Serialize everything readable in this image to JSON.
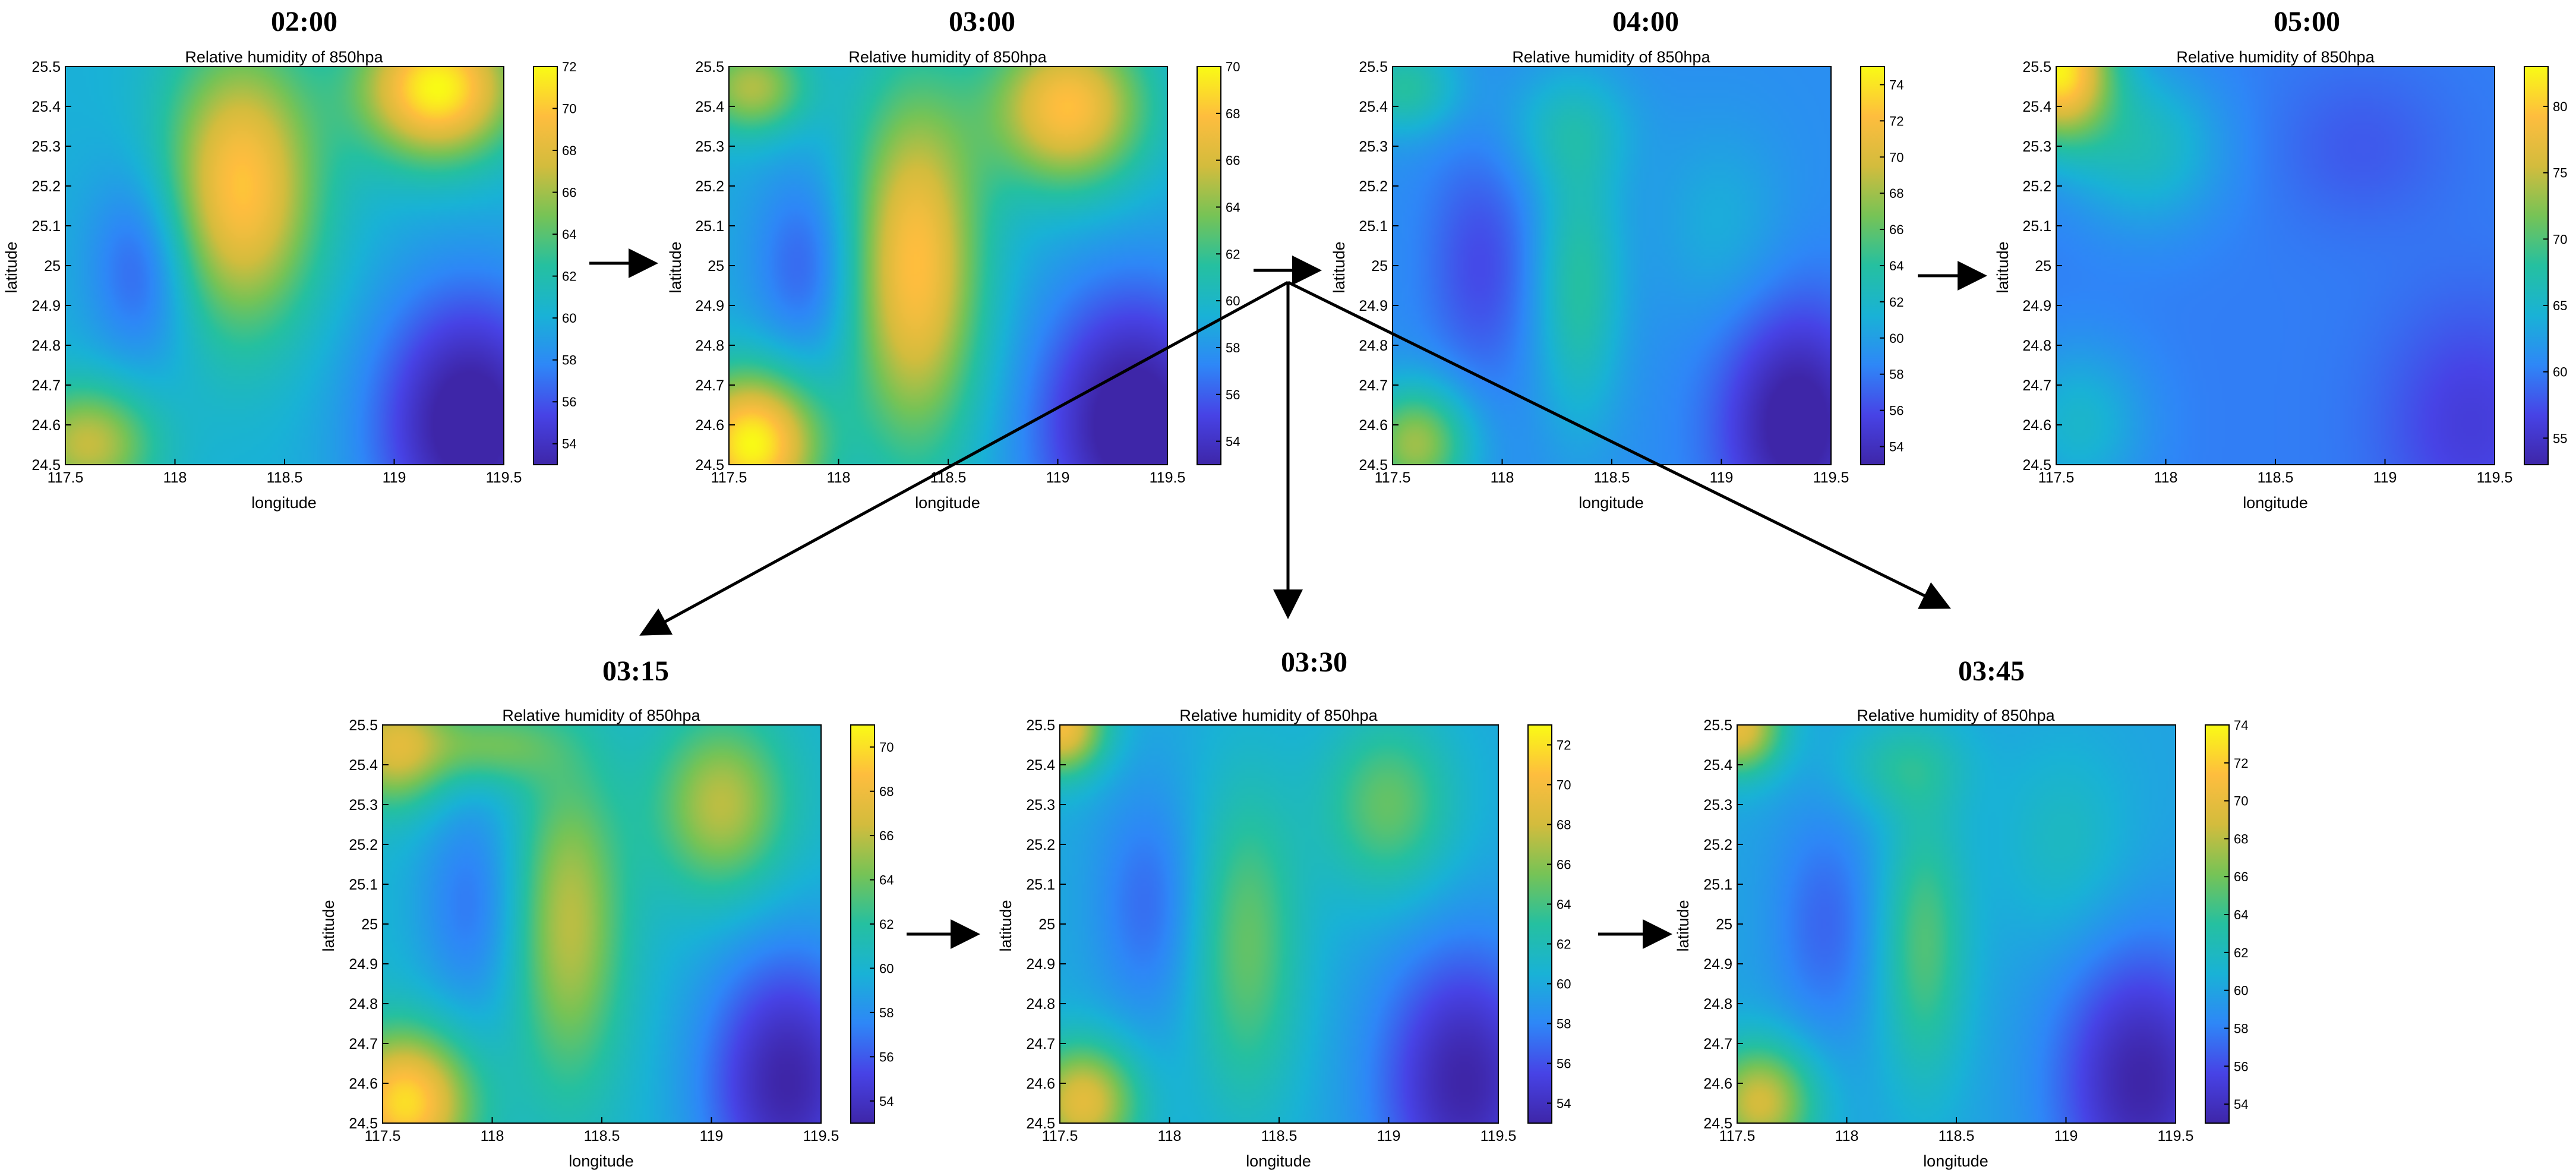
{
  "colormap": [
    "#3e26a8",
    "#4743e6",
    "#2e87f7",
    "#19b2d6",
    "#25c0a0",
    "#76c356",
    "#d3bc3d",
    "#febd3e",
    "#f9fb15"
  ],
  "arrow_color": "#000000",
  "chart_data": [
    {
      "id": "p0200",
      "type": "heatmap",
      "time": "02:00",
      "title": "Relative humidity of 850hpa",
      "xlabel": "longitude",
      "ylabel": "latitude",
      "xlim": [
        117.5,
        119.5
      ],
      "ylim": [
        24.5,
        25.5
      ],
      "xticks": [
        "117.5",
        "118",
        "118.5",
        "119",
        "119.5"
      ],
      "yticks": [
        "24.5",
        "24.6",
        "24.7",
        "24.8",
        "24.9",
        "25",
        "25.1",
        "25.2",
        "25.3",
        "25.4",
        "25.5"
      ],
      "clim": [
        53,
        72
      ],
      "cticks": [
        "54",
        "56",
        "58",
        "60",
        "62",
        "64",
        "66",
        "68",
        "70",
        "72"
      ],
      "field": {
        "base": 60,
        "blobs": [
          [
            118.3,
            25.2,
            10,
            0.35,
            0.35
          ],
          [
            119.2,
            25.45,
            12,
            0.35,
            0.18
          ],
          [
            117.6,
            24.55,
            7,
            0.3,
            0.15
          ],
          [
            119.35,
            24.6,
            -8,
            0.45,
            0.35
          ],
          [
            117.85,
            25.0,
            -4,
            0.25,
            0.25
          ]
        ]
      }
    },
    {
      "id": "p0300",
      "type": "heatmap",
      "time": "03:00",
      "title": "Relative humidity of 850hpa",
      "xlabel": "longitude",
      "ylabel": "latitude",
      "xlim": [
        117.5,
        119.5
      ],
      "ylim": [
        24.5,
        25.5
      ],
      "xticks": [
        "117.5",
        "118",
        "118.5",
        "119",
        "119.5"
      ],
      "yticks": [
        "24.5",
        "24.6",
        "24.7",
        "24.8",
        "24.9",
        "25",
        "25.1",
        "25.2",
        "25.3",
        "25.4",
        "25.5"
      ],
      "clim": [
        53,
        70
      ],
      "cticks": [
        "54",
        "56",
        "58",
        "60",
        "62",
        "64",
        "66",
        "68",
        "70"
      ],
      "field": {
        "base": 59,
        "blobs": [
          [
            118.35,
            25.0,
            9,
            0.3,
            0.45
          ],
          [
            119.05,
            25.4,
            9,
            0.35,
            0.2
          ],
          [
            117.6,
            24.55,
            11,
            0.3,
            0.18
          ],
          [
            117.6,
            25.45,
            6,
            0.25,
            0.12
          ],
          [
            119.35,
            24.6,
            -7,
            0.45,
            0.35
          ],
          [
            117.85,
            25.0,
            -3,
            0.25,
            0.25
          ]
        ]
      }
    },
    {
      "id": "p0400",
      "type": "heatmap",
      "time": "04:00",
      "title": "Relative humidity of 850hpa",
      "xlabel": "longitude",
      "ylabel": "latitude",
      "xlim": [
        117.5,
        119.5
      ],
      "ylim": [
        24.5,
        25.5
      ],
      "xticks": [
        "117.5",
        "118",
        "118.5",
        "119",
        "119.5"
      ],
      "yticks": [
        "24.5",
        "24.6",
        "24.7",
        "24.8",
        "24.9",
        "25",
        "25.1",
        "25.2",
        "25.3",
        "25.4",
        "25.5"
      ],
      "clim": [
        53,
        75
      ],
      "cticks": [
        "54",
        "56",
        "58",
        "60",
        "62",
        "64",
        "66",
        "68",
        "70",
        "72",
        "74"
      ],
      "field": {
        "base": 59,
        "blobs": [
          [
            118.35,
            24.95,
            5,
            0.2,
            0.35
          ],
          [
            117.6,
            24.55,
            9,
            0.25,
            0.15
          ],
          [
            117.55,
            25.45,
            5,
            0.25,
            0.12
          ],
          [
            118.3,
            25.35,
            3,
            0.3,
            0.15
          ],
          [
            119.0,
            25.1,
            2,
            0.3,
            0.25
          ],
          [
            119.35,
            24.6,
            -7,
            0.35,
            0.3
          ],
          [
            117.9,
            25.0,
            -3,
            0.25,
            0.3
          ]
        ]
      }
    },
    {
      "id": "p0500",
      "type": "heatmap",
      "time": "05:00",
      "title": "Relative humidity of 850hpa",
      "xlabel": "longitude",
      "ylabel": "latitude",
      "xlim": [
        117.5,
        119.5
      ],
      "ylim": [
        24.5,
        25.5
      ],
      "xticks": [
        "117.5",
        "118",
        "118.5",
        "119",
        "119.5"
      ],
      "yticks": [
        "24.5",
        "24.6",
        "24.7",
        "24.8",
        "24.9",
        "25",
        "25.1",
        "25.2",
        "25.3",
        "25.4",
        "25.5"
      ],
      "clim": [
        53,
        83
      ],
      "cticks": [
        "55",
        "60",
        "65",
        "70",
        "75",
        "80"
      ],
      "field": {
        "base": 60,
        "blobs": [
          [
            117.5,
            25.5,
            22,
            0.25,
            0.18
          ],
          [
            117.9,
            25.3,
            6,
            0.35,
            0.2
          ],
          [
            117.6,
            24.6,
            5,
            0.3,
            0.2
          ],
          [
            119.4,
            24.6,
            -4,
            0.4,
            0.3
          ],
          [
            118.9,
            25.3,
            -2,
            0.4,
            0.2
          ]
        ]
      }
    },
    {
      "id": "p0315",
      "type": "heatmap",
      "time": "03:15",
      "title": "Relative humidity of 850hpa",
      "xlabel": "longitude",
      "ylabel": "latitude",
      "xlim": [
        117.5,
        119.5
      ],
      "ylim": [
        24.5,
        25.5
      ],
      "xticks": [
        "117.5",
        "118",
        "118.5",
        "119",
        "119.5"
      ],
      "yticks": [
        "24.5",
        "24.6",
        "24.7",
        "24.8",
        "24.9",
        "25",
        "25.1",
        "25.2",
        "25.3",
        "25.4",
        "25.5"
      ],
      "clim": [
        53,
        71
      ],
      "cticks": [
        "54",
        "56",
        "58",
        "60",
        "62",
        "64",
        "66",
        "68",
        "70"
      ],
      "field": {
        "base": 60,
        "blobs": [
          [
            118.35,
            25.0,
            6,
            0.25,
            0.4
          ],
          [
            117.6,
            24.55,
            10,
            0.3,
            0.18
          ],
          [
            117.55,
            25.45,
            7,
            0.25,
            0.15
          ],
          [
            119.05,
            25.3,
            6,
            0.3,
            0.22
          ],
          [
            118.0,
            25.45,
            4,
            0.3,
            0.1
          ],
          [
            119.35,
            24.6,
            -7,
            0.4,
            0.35
          ],
          [
            117.9,
            25.05,
            -3,
            0.25,
            0.3
          ]
        ]
      }
    },
    {
      "id": "p0330",
      "type": "heatmap",
      "time": "03:30",
      "title": "Relative humidity of 850hpa",
      "xlabel": "longitude",
      "ylabel": "latitude",
      "xlim": [
        117.5,
        119.5
      ],
      "ylim": [
        24.5,
        25.5
      ],
      "xticks": [
        "117.5",
        "118",
        "118.5",
        "119",
        "119.5"
      ],
      "yticks": [
        "24.5",
        "24.6",
        "24.7",
        "24.8",
        "24.9",
        "25",
        "25.1",
        "25.2",
        "25.3",
        "25.4",
        "25.5"
      ],
      "clim": [
        53,
        73
      ],
      "cticks": [
        "54",
        "56",
        "58",
        "60",
        "62",
        "64",
        "66",
        "68",
        "70",
        "72"
      ],
      "field": {
        "base": 60,
        "blobs": [
          [
            118.35,
            24.95,
            5,
            0.25,
            0.4
          ],
          [
            117.6,
            24.55,
            9,
            0.25,
            0.15
          ],
          [
            117.5,
            25.5,
            10,
            0.2,
            0.12
          ],
          [
            119.0,
            25.3,
            5,
            0.3,
            0.22
          ],
          [
            119.35,
            24.6,
            -7,
            0.4,
            0.35
          ],
          [
            117.9,
            25.05,
            -3,
            0.25,
            0.3
          ]
        ]
      }
    },
    {
      "id": "p0345",
      "type": "heatmap",
      "time": "03:45",
      "title": "Relative humidity of 850hpa",
      "xlabel": "longitude",
      "ylabel": "latitude",
      "xlim": [
        117.5,
        119.5
      ],
      "ylim": [
        24.5,
        25.5
      ],
      "xticks": [
        "117.5",
        "118",
        "118.5",
        "119",
        "119.5"
      ],
      "yticks": [
        "24.5",
        "24.6",
        "24.7",
        "24.8",
        "24.9",
        "25",
        "25.1",
        "25.2",
        "25.3",
        "25.4",
        "25.5"
      ],
      "clim": [
        53,
        74
      ],
      "cticks": [
        "54",
        "56",
        "58",
        "60",
        "62",
        "64",
        "66",
        "68",
        "70",
        "72",
        "74"
      ],
      "field": {
        "base": 60,
        "blobs": [
          [
            118.35,
            24.95,
            5,
            0.2,
            0.35
          ],
          [
            117.6,
            24.55,
            9,
            0.25,
            0.15
          ],
          [
            117.5,
            25.5,
            10,
            0.2,
            0.12
          ],
          [
            118.25,
            25.4,
            3,
            0.3,
            0.12
          ],
          [
            119.0,
            25.2,
            2,
            0.3,
            0.25
          ],
          [
            119.35,
            24.6,
            -7,
            0.4,
            0.35
          ],
          [
            117.9,
            25.0,
            -3,
            0.25,
            0.3
          ]
        ]
      }
    }
  ]
}
